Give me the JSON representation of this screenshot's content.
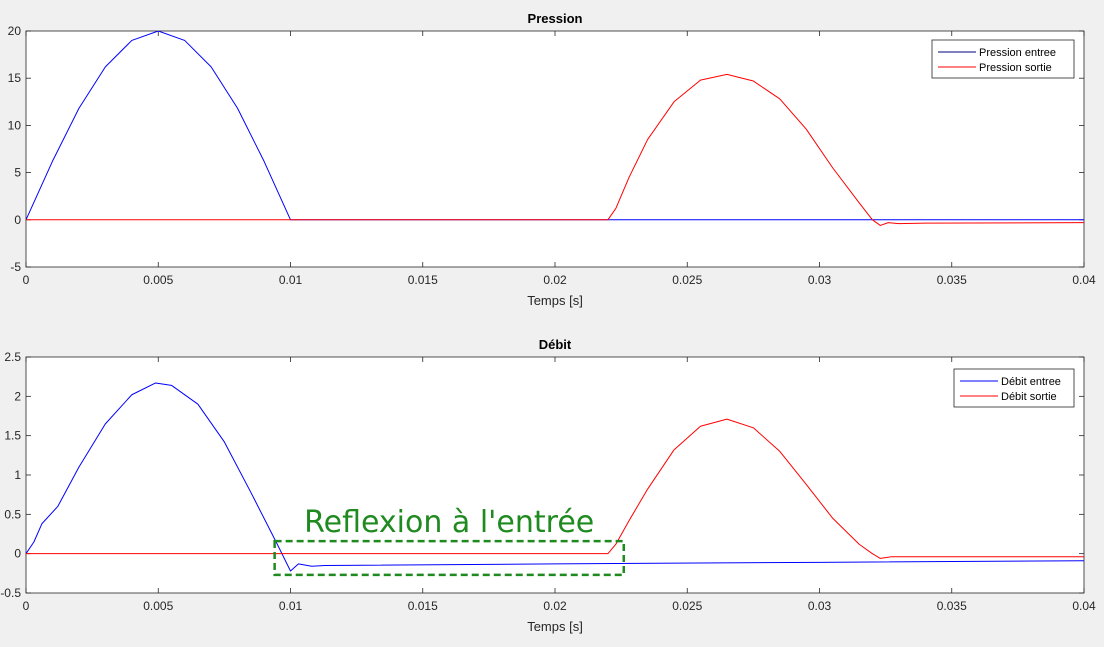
{
  "chart_data": [
    {
      "type": "line",
      "title": "Pression",
      "xlabel": "Temps [s]",
      "ylabel": "",
      "xlim": [
        0,
        0.04
      ],
      "ylim": [
        -5,
        20
      ],
      "xticks": [
        0,
        0.005,
        0.01,
        0.015,
        0.02,
        0.025,
        0.03,
        0.035,
        0.04
      ],
      "xtick_labels": [
        "0",
        "0.005",
        "0.01",
        "0.015",
        "0.02",
        "0.025",
        "0.03",
        "0.035",
        "0.04"
      ],
      "yticks": [
        -5,
        0,
        5,
        10,
        15,
        20
      ],
      "ytick_labels": [
        "-5",
        "0",
        "5",
        "10",
        "15",
        "20"
      ],
      "grid": false,
      "legend_position": "top-right",
      "series": [
        {
          "name": "Pression entree",
          "color": "#0000ff",
          "legend_color": "#000080",
          "x": [
            0,
            0.001,
            0.002,
            0.003,
            0.004,
            0.005,
            0.006,
            0.007,
            0.008,
            0.009,
            0.01,
            0.012,
            0.015,
            0.02,
            0.025,
            0.03,
            0.035,
            0.04
          ],
          "y": [
            0,
            6.2,
            11.8,
            16.2,
            19.0,
            20.0,
            19.0,
            16.2,
            11.8,
            6.2,
            0,
            0,
            0,
            0,
            0,
            0,
            0,
            0
          ]
        },
        {
          "name": "Pression sortie",
          "color": "#ff0000",
          "legend_color": "#ff0000",
          "x": [
            0,
            0.022,
            0.0223,
            0.0228,
            0.0235,
            0.0245,
            0.0255,
            0.0265,
            0.0275,
            0.0285,
            0.0295,
            0.0305,
            0.0315,
            0.032,
            0.0323,
            0.0326,
            0.033,
            0.034,
            0.04
          ],
          "y": [
            0,
            0,
            1.2,
            4.5,
            8.5,
            12.5,
            14.8,
            15.4,
            14.7,
            12.8,
            9.6,
            5.5,
            1.8,
            0,
            -0.6,
            -0.3,
            -0.4,
            -0.35,
            -0.3
          ]
        }
      ]
    },
    {
      "type": "line",
      "title": "Débit",
      "xlabel": "Temps [s]",
      "ylabel": "",
      "xlim": [
        0,
        0.04
      ],
      "ylim": [
        -0.5,
        2.5
      ],
      "xticks": [
        0,
        0.005,
        0.01,
        0.015,
        0.02,
        0.025,
        0.03,
        0.035,
        0.04
      ],
      "xtick_labels": [
        "0",
        "0.005",
        "0.01",
        "0.015",
        "0.02",
        "0.025",
        "0.03",
        "0.035",
        "0.04"
      ],
      "yticks": [
        -0.5,
        0,
        0.5,
        1,
        1.5,
        2,
        2.5
      ],
      "ytick_labels": [
        "-0.5",
        "0",
        "0.5",
        "1",
        "1.5",
        "2",
        "2.5"
      ],
      "grid": false,
      "legend_position": "top-right",
      "series": [
        {
          "name": "Débit entree",
          "color": "#0000ff",
          "legend_color": "#0000ff",
          "x": [
            0,
            0.0003,
            0.0006,
            0.0012,
            0.002,
            0.003,
            0.004,
            0.0049,
            0.0055,
            0.0065,
            0.0075,
            0.0085,
            0.0095,
            0.01,
            0.0103,
            0.0108,
            0.0113,
            0.02,
            0.03,
            0.04
          ],
          "y": [
            0,
            0.15,
            0.38,
            0.6,
            1.1,
            1.65,
            2.02,
            2.17,
            2.14,
            1.9,
            1.42,
            0.78,
            0.12,
            -0.22,
            -0.13,
            -0.16,
            -0.15,
            -0.13,
            -0.11,
            -0.09
          ]
        },
        {
          "name": "Débit sortie",
          "color": "#ff0000",
          "legend_color": "#ff0000",
          "x": [
            0,
            0.022,
            0.0223,
            0.0228,
            0.0235,
            0.0245,
            0.0255,
            0.0265,
            0.0275,
            0.0285,
            0.0295,
            0.0305,
            0.0315,
            0.032,
            0.0323,
            0.0327,
            0.033,
            0.034,
            0.04
          ],
          "y": [
            0,
            0,
            0.12,
            0.42,
            0.82,
            1.32,
            1.62,
            1.71,
            1.6,
            1.3,
            0.88,
            0.45,
            0.12,
            0.0,
            -0.06,
            -0.04,
            -0.04,
            -0.04,
            -0.04
          ]
        }
      ],
      "annotations": [
        {
          "text": "Reflexion à l'entrée",
          "color": "#1f8a1f",
          "box_x": [
            0.0094,
            0.0226
          ],
          "box_y": [
            -0.27,
            0.16
          ]
        }
      ]
    }
  ]
}
